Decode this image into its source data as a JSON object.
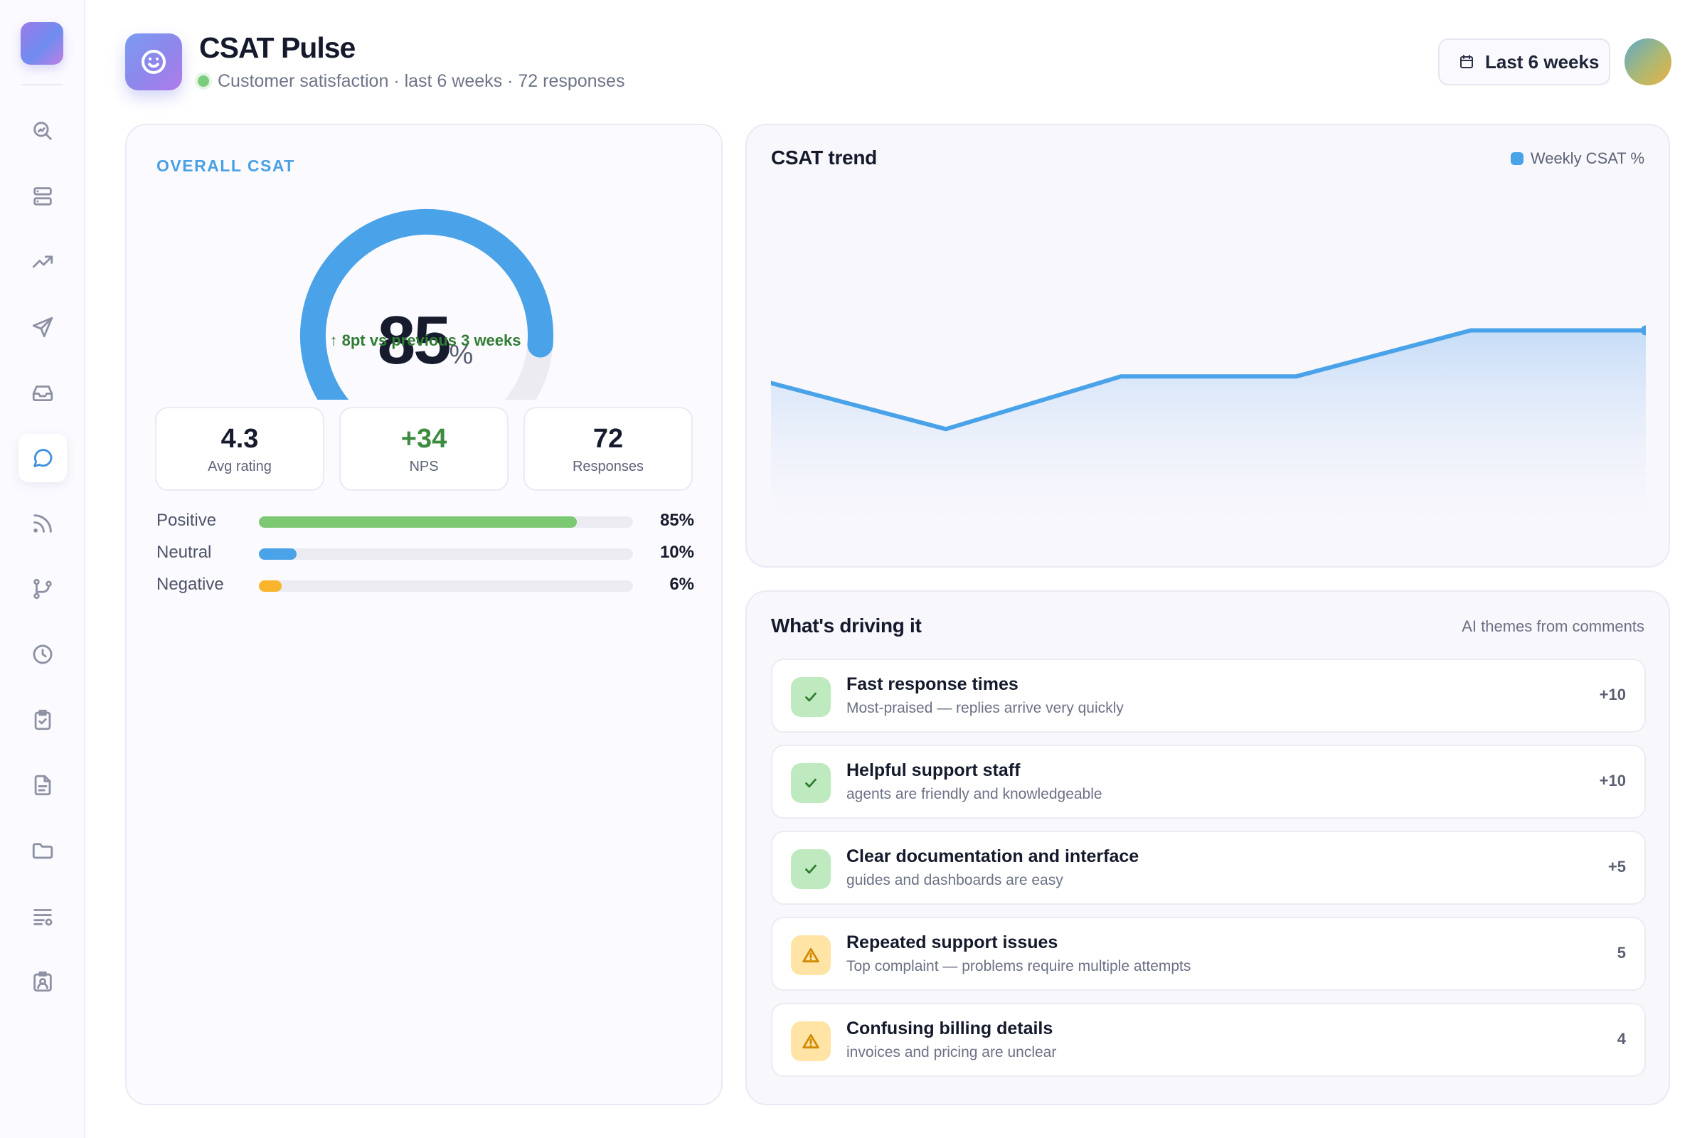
{
  "sidebar": {
    "items": [
      {
        "icon": "search-chart-icon",
        "active": false
      },
      {
        "icon": "server-icon",
        "active": false
      },
      {
        "icon": "trending-up-icon",
        "active": false
      },
      {
        "icon": "send-icon",
        "active": false
      },
      {
        "icon": "inbox-icon",
        "active": false
      },
      {
        "icon": "message-circle-icon",
        "active": true
      },
      {
        "icon": "rss-icon",
        "active": false
      },
      {
        "icon": "git-branch-icon",
        "active": false
      },
      {
        "icon": "clock-icon",
        "active": false
      },
      {
        "icon": "clipboard-check-icon",
        "active": false
      },
      {
        "icon": "file-text-icon",
        "active": false
      },
      {
        "icon": "folder-icon",
        "active": false
      },
      {
        "icon": "list-settings-icon",
        "active": false
      },
      {
        "icon": "contact-badge-icon",
        "active": false
      }
    ]
  },
  "header": {
    "title": "CSAT Pulse",
    "subtitle": "Customer satisfaction · last 6 weeks · 72 responses",
    "range_label": "Last 6 weeks"
  },
  "overall": {
    "label": "OVERALL CSAT",
    "score": "85",
    "score_value": 85,
    "unit": "%",
    "delta": "↑ 8pt vs previous 3 weeks"
  },
  "stats": [
    {
      "value": "4.3",
      "label": "Avg rating"
    },
    {
      "value": "+34",
      "label": "NPS"
    },
    {
      "value": "72",
      "label": "Responses"
    }
  ],
  "sentiment": [
    {
      "label": "Positive",
      "value": 85,
      "display": "85%",
      "color": "#7cc873"
    },
    {
      "label": "Neutral",
      "value": 10,
      "display": "10%",
      "color": "#4aa3e8"
    },
    {
      "label": "Negative",
      "value": 6,
      "display": "6%",
      "color": "#f8b42a"
    }
  ],
  "trend": {
    "title": "CSAT trend",
    "legend": "Weekly CSAT %"
  },
  "chart_data": {
    "type": "area",
    "x": [
      1,
      2,
      3,
      4,
      5,
      6
    ],
    "series": [
      {
        "name": "Weekly CSAT %",
        "values": [
          77,
          70,
          78,
          78,
          85,
          85
        ]
      }
    ],
    "ylim": [
      55,
      95
    ],
    "grid": false,
    "color": "#4aa3e8"
  },
  "drivers": {
    "title": "What's driving it",
    "subtitle": "AI themes from comments",
    "items": [
      {
        "title": "Fast response times",
        "desc": "Most-praised — replies arrive very quickly",
        "score": "+10",
        "kind": "positive"
      },
      {
        "title": "Helpful support staff",
        "desc": "agents are friendly and knowledgeable",
        "score": "+10",
        "kind": "positive"
      },
      {
        "title": "Clear documentation and interface",
        "desc": "guides and dashboards are easy",
        "score": "+5",
        "kind": "positive"
      },
      {
        "title": "Repeated support issues",
        "desc": "Top complaint — problems require multiple attempts",
        "score": "5",
        "kind": "negative"
      },
      {
        "title": "Confusing billing details",
        "desc": "invoices and pricing are unclear",
        "score": "4",
        "kind": "negative"
      }
    ]
  }
}
